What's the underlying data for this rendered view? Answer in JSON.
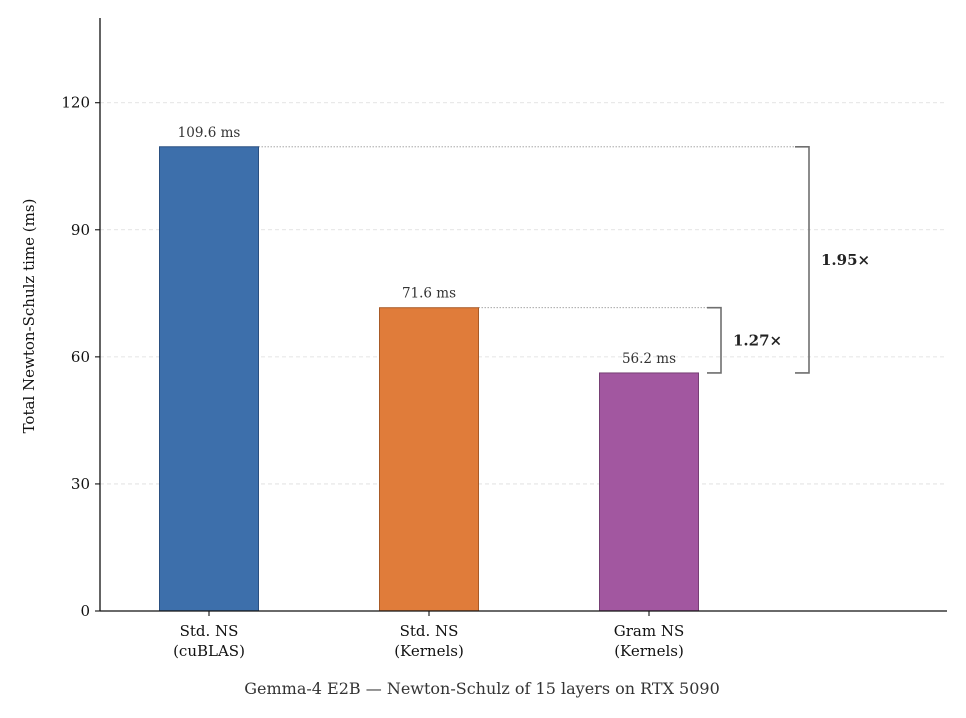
{
  "chart_data": {
    "type": "bar",
    "categories": [
      [
        "Std. NS",
        "(cuBLAS)"
      ],
      [
        "Std. NS",
        "(Kernels)"
      ],
      [
        "Gram NS",
        "(Kernels)"
      ]
    ],
    "values": [
      109.6,
      71.6,
      56.2
    ],
    "value_labels": [
      "109.6 ms",
      "71.6 ms",
      "56.2 ms"
    ],
    "colors": [
      "#3d6fab",
      "#e07c3a",
      "#a257a0"
    ],
    "edge_colors": [
      "#2a4f80",
      "#a85a26",
      "#763f74"
    ],
    "ylabel": "Total Newton-Schulz time (ms)",
    "xlabel": "Gemma-4 E2B — Newton-Schulz of 15 layers on RTX 5090",
    "ylim": [
      0,
      140
    ],
    "yticks": [
      0,
      30,
      60,
      90,
      120
    ],
    "grid": "y-dashed",
    "annotations": [
      {
        "label": "1.27×",
        "from_value": 71.6,
        "to_value": 56.2
      },
      {
        "label": "1.95×",
        "from_value": 109.6,
        "to_value": 56.2
      }
    ]
  }
}
